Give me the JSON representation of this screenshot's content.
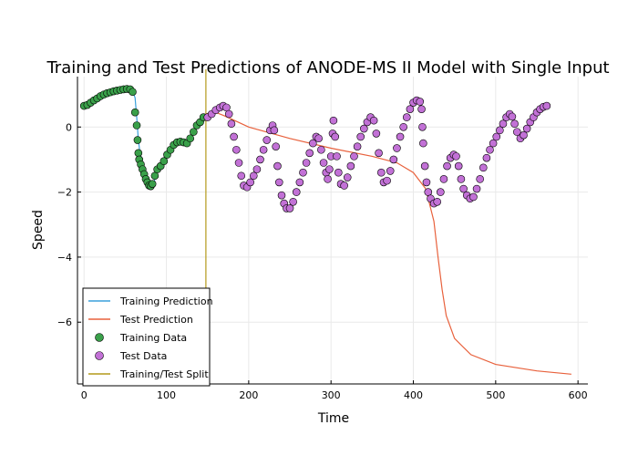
{
  "chart_data": {
    "type": "scatter",
    "title": "Training and Test Predictions of ANODE-MS II Model with Single Input",
    "xlabel": "Time",
    "ylabel": "Speed",
    "xlim": [
      -8,
      612
    ],
    "ylim": [
      -7.9,
      1.55
    ],
    "xticks": [
      0,
      100,
      200,
      300,
      400,
      500,
      600
    ],
    "yticks": [
      -6,
      -4,
      -2,
      0
    ],
    "grid": true,
    "legend_position": "bottom-left",
    "split_x": 148,
    "colors": {
      "training_prediction": "#3aa1dc",
      "test_prediction": "#e8613c",
      "training_data": "#3aa04a",
      "test_data": "#c271d6",
      "split": "#b49a1a"
    },
    "series": [
      {
        "name": "Training Prediction",
        "kind": "line",
        "points": [
          [
            0,
            0.65
          ],
          [
            10,
            0.8
          ],
          [
            20,
            0.95
          ],
          [
            30,
            1.05
          ],
          [
            40,
            1.12
          ],
          [
            50,
            1.17
          ],
          [
            58,
            1.15
          ],
          [
            62,
            0.9
          ],
          [
            64,
            0.3
          ],
          [
            66,
            -0.4
          ],
          [
            68,
            -0.8
          ],
          [
            72,
            -1.2
          ],
          [
            76,
            -1.55
          ],
          [
            80,
            -1.8
          ],
          [
            85,
            -1.7
          ],
          [
            88,
            -1.4
          ],
          [
            95,
            -1.2
          ],
          [
            100,
            -0.9
          ],
          [
            106,
            -0.7
          ],
          [
            112,
            -0.5
          ],
          [
            118,
            -0.45
          ],
          [
            125,
            -0.5
          ],
          [
            130,
            -0.3
          ],
          [
            137,
            0.0
          ],
          [
            143,
            0.2
          ],
          [
            148,
            0.35
          ]
        ]
      },
      {
        "name": "Test Prediction",
        "kind": "line",
        "points": [
          [
            148,
            0.4
          ],
          [
            160,
            0.45
          ],
          [
            170,
            0.35
          ],
          [
            200,
            0.0
          ],
          [
            250,
            -0.35
          ],
          [
            300,
            -0.65
          ],
          [
            350,
            -0.9
          ],
          [
            380,
            -1.1
          ],
          [
            400,
            -1.4
          ],
          [
            415,
            -1.9
          ],
          [
            425,
            -2.9
          ],
          [
            430,
            -4.0
          ],
          [
            435,
            -5.0
          ],
          [
            440,
            -5.8
          ],
          [
            450,
            -6.5
          ],
          [
            470,
            -7.0
          ],
          [
            500,
            -7.3
          ],
          [
            550,
            -7.5
          ],
          [
            592,
            -7.6
          ]
        ]
      },
      {
        "name": "Training Data",
        "kind": "scatter",
        "points": [
          [
            0,
            0.65
          ],
          [
            4,
            0.68
          ],
          [
            8,
            0.75
          ],
          [
            12,
            0.82
          ],
          [
            16,
            0.88
          ],
          [
            20,
            0.95
          ],
          [
            24,
            1.0
          ],
          [
            28,
            1.04
          ],
          [
            32,
            1.07
          ],
          [
            36,
            1.1
          ],
          [
            40,
            1.12
          ],
          [
            44,
            1.14
          ],
          [
            48,
            1.16
          ],
          [
            52,
            1.17
          ],
          [
            56,
            1.16
          ],
          [
            59,
            1.08
          ],
          [
            62,
            0.45
          ],
          [
            64,
            0.05
          ],
          [
            65,
            -0.4
          ],
          [
            66,
            -0.8
          ],
          [
            67,
            -1.0
          ],
          [
            69,
            -1.15
          ],
          [
            71,
            -1.3
          ],
          [
            73,
            -1.45
          ],
          [
            75,
            -1.6
          ],
          [
            77,
            -1.7
          ],
          [
            79,
            -1.8
          ],
          [
            81,
            -1.82
          ],
          [
            83,
            -1.75
          ],
          [
            86,
            -1.5
          ],
          [
            89,
            -1.3
          ],
          [
            93,
            -1.2
          ],
          [
            97,
            -1.05
          ],
          [
            101,
            -0.85
          ],
          [
            105,
            -0.7
          ],
          [
            109,
            -0.55
          ],
          [
            113,
            -0.47
          ],
          [
            117,
            -0.45
          ],
          [
            121,
            -0.47
          ],
          [
            125,
            -0.5
          ],
          [
            129,
            -0.35
          ],
          [
            133,
            -0.15
          ],
          [
            137,
            0.05
          ],
          [
            141,
            0.15
          ],
          [
            145,
            0.3
          ]
        ]
      },
      {
        "name": "Test Data",
        "kind": "scatter",
        "points": [
          [
            150,
            0.3
          ],
          [
            155,
            0.4
          ],
          [
            160,
            0.52
          ],
          [
            165,
            0.6
          ],
          [
            169,
            0.65
          ],
          [
            173,
            0.6
          ],
          [
            176,
            0.4
          ],
          [
            179,
            0.1
          ],
          [
            182,
            -0.3
          ],
          [
            185,
            -0.7
          ],
          [
            188,
            -1.1
          ],
          [
            191,
            -1.5
          ],
          [
            194,
            -1.8
          ],
          [
            198,
            -1.85
          ],
          [
            202,
            -1.7
          ],
          [
            206,
            -1.5
          ],
          [
            210,
            -1.3
          ],
          [
            214,
            -1.0
          ],
          [
            218,
            -0.7
          ],
          [
            222,
            -0.4
          ],
          [
            226,
            -0.1
          ],
          [
            229,
            0.05
          ],
          [
            231,
            -0.1
          ],
          [
            233,
            -0.6
          ],
          [
            235,
            -1.2
          ],
          [
            237,
            -1.7
          ],
          [
            240,
            -2.1
          ],
          [
            243,
            -2.35
          ],
          [
            246,
            -2.5
          ],
          [
            250,
            -2.5
          ],
          [
            254,
            -2.3
          ],
          [
            258,
            -2.0
          ],
          [
            262,
            -1.7
          ],
          [
            266,
            -1.4
          ],
          [
            270,
            -1.1
          ],
          [
            274,
            -0.8
          ],
          [
            278,
            -0.5
          ],
          [
            282,
            -0.3
          ],
          [
            285,
            -0.35
          ],
          [
            288,
            -0.7
          ],
          [
            291,
            -1.1
          ],
          [
            294,
            -1.4
          ],
          [
            296,
            -1.6
          ],
          [
            298,
            -1.3
          ],
          [
            300,
            -0.9
          ],
          [
            302,
            -0.2
          ],
          [
            303,
            0.2
          ],
          [
            305,
            -0.3
          ],
          [
            307,
            -0.9
          ],
          [
            309,
            -1.4
          ],
          [
            312,
            -1.75
          ],
          [
            316,
            -1.8
          ],
          [
            320,
            -1.55
          ],
          [
            324,
            -1.2
          ],
          [
            328,
            -0.9
          ],
          [
            332,
            -0.6
          ],
          [
            336,
            -0.3
          ],
          [
            340,
            -0.05
          ],
          [
            344,
            0.15
          ],
          [
            348,
            0.3
          ],
          [
            352,
            0.2
          ],
          [
            355,
            -0.2
          ],
          [
            358,
            -0.8
          ],
          [
            361,
            -1.4
          ],
          [
            364,
            -1.7
          ],
          [
            368,
            -1.65
          ],
          [
            372,
            -1.35
          ],
          [
            376,
            -1.0
          ],
          [
            380,
            -0.65
          ],
          [
            384,
            -0.3
          ],
          [
            388,
            0.0
          ],
          [
            392,
            0.3
          ],
          [
            396,
            0.55
          ],
          [
            400,
            0.75
          ],
          [
            404,
            0.82
          ],
          [
            408,
            0.78
          ],
          [
            410,
            0.55
          ],
          [
            411,
            0.0
          ],
          [
            412,
            -0.5
          ],
          [
            414,
            -1.2
          ],
          [
            416,
            -1.7
          ],
          [
            418,
            -2.0
          ],
          [
            421,
            -2.2
          ],
          [
            425,
            -2.35
          ],
          [
            429,
            -2.3
          ],
          [
            433,
            -2.0
          ],
          [
            437,
            -1.6
          ],
          [
            441,
            -1.2
          ],
          [
            445,
            -0.95
          ],
          [
            449,
            -0.85
          ],
          [
            452,
            -0.9
          ],
          [
            455,
            -1.2
          ],
          [
            458,
            -1.6
          ],
          [
            461,
            -1.9
          ],
          [
            465,
            -2.1
          ],
          [
            469,
            -2.2
          ],
          [
            473,
            -2.15
          ],
          [
            477,
            -1.9
          ],
          [
            481,
            -1.6
          ],
          [
            485,
            -1.25
          ],
          [
            489,
            -0.95
          ],
          [
            493,
            -0.7
          ],
          [
            497,
            -0.5
          ],
          [
            501,
            -0.3
          ],
          [
            505,
            -0.1
          ],
          [
            509,
            0.1
          ],
          [
            513,
            0.3
          ],
          [
            517,
            0.4
          ],
          [
            520,
            0.32
          ],
          [
            523,
            0.1
          ],
          [
            526,
            -0.15
          ],
          [
            530,
            -0.35
          ],
          [
            534,
            -0.25
          ],
          [
            538,
            -0.05
          ],
          [
            542,
            0.15
          ],
          [
            546,
            0.3
          ],
          [
            550,
            0.45
          ],
          [
            554,
            0.55
          ],
          [
            558,
            0.62
          ],
          [
            562,
            0.65
          ]
        ]
      },
      {
        "name": "Training/Test Split",
        "kind": "vline",
        "x": 148
      }
    ]
  },
  "legend": {
    "items": [
      {
        "label": "Training Prediction",
        "symbol": "line",
        "color": "#3aa1dc"
      },
      {
        "label": "Test Prediction",
        "symbol": "line",
        "color": "#e8613c"
      },
      {
        "label": "Training Data",
        "symbol": "marker",
        "color": "#3aa04a"
      },
      {
        "label": "Test Data",
        "symbol": "marker",
        "color": "#c271d6"
      },
      {
        "label": "Training/Test Split",
        "symbol": "line",
        "color": "#b49a1a"
      }
    ]
  }
}
